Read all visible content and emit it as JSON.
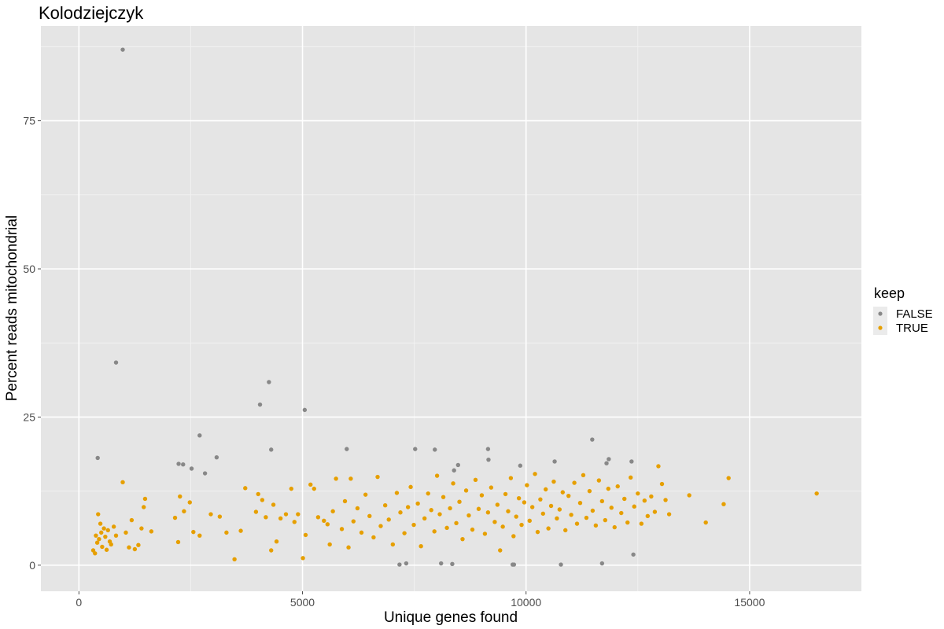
{
  "chart_data": {
    "type": "scatter",
    "title": "Kolodziejczyk",
    "xlabel": "Unique genes found",
    "ylabel": "Percent reads mitochondrial",
    "xlim": [
      -850,
      17500
    ],
    "ylim": [
      -4.4,
      91
    ],
    "x_ticks": [
      0,
      5000,
      10000,
      15000
    ],
    "x_tick_labels": [
      "0",
      "5000",
      "10000",
      "15000"
    ],
    "y_ticks": [
      0,
      25,
      50,
      75
    ],
    "y_tick_labels": [
      "0",
      "25",
      "50",
      "75"
    ],
    "grid": true,
    "legend": {
      "title": "keep",
      "placement": "right",
      "entries": [
        {
          "label": "FALSE",
          "color": "#888888"
        },
        {
          "label": "TRUE",
          "color": "#E69F00"
        }
      ]
    },
    "series": [
      {
        "name": "FALSE",
        "color": "#888888",
        "points": [
          [
            980,
            87
          ],
          [
            830,
            34.2
          ],
          [
            420,
            18.1
          ],
          [
            2230,
            17.1
          ],
          [
            2330,
            17.0
          ],
          [
            2520,
            16.3
          ],
          [
            2700,
            21.9
          ],
          [
            2820,
            15.5
          ],
          [
            3080,
            18.2
          ],
          [
            4050,
            27.1
          ],
          [
            4250,
            30.9
          ],
          [
            4300,
            19.5
          ],
          [
            5050,
            26.2
          ],
          [
            5990,
            19.6
          ],
          [
            7520,
            19.6
          ],
          [
            7960,
            19.5
          ],
          [
            8390,
            16.0
          ],
          [
            8480,
            16.9
          ],
          [
            9150,
            19.6
          ],
          [
            9160,
            17.8
          ],
          [
            9870,
            16.8
          ],
          [
            10640,
            17.5
          ],
          [
            11480,
            21.2
          ],
          [
            11800,
            17.2
          ],
          [
            11850,
            17.9
          ],
          [
            12360,
            17.5
          ],
          [
            12400,
            1.8
          ],
          [
            11700,
            0.3
          ],
          [
            10780,
            0.1
          ],
          [
            9700,
            0.1
          ],
          [
            9730,
            0.1
          ],
          [
            8350,
            0.2
          ],
          [
            8100,
            0.3
          ],
          [
            7320,
            0.3
          ],
          [
            7170,
            0.1
          ]
        ]
      },
      {
        "name": "TRUE",
        "color": "#E69F00",
        "points": [
          [
            320,
            2.5
          ],
          [
            360,
            2.0
          ],
          [
            380,
            5.0
          ],
          [
            410,
            3.8
          ],
          [
            430,
            8.6
          ],
          [
            450,
            4.4
          ],
          [
            480,
            7.0
          ],
          [
            500,
            5.5
          ],
          [
            520,
            3.1
          ],
          [
            560,
            6.2
          ],
          [
            590,
            4.8
          ],
          [
            620,
            2.6
          ],
          [
            650,
            5.9
          ],
          [
            690,
            4.0
          ],
          [
            720,
            3.5
          ],
          [
            780,
            6.5
          ],
          [
            830,
            5.0
          ],
          [
            980,
            14.0
          ],
          [
            1050,
            5.5
          ],
          [
            1120,
            3.0
          ],
          [
            1180,
            7.6
          ],
          [
            1250,
            2.7
          ],
          [
            1330,
            3.4
          ],
          [
            1400,
            6.2
          ],
          [
            1450,
            9.8
          ],
          [
            1480,
            11.2
          ],
          [
            1620,
            5.7
          ],
          [
            2150,
            8.0
          ],
          [
            2220,
            3.9
          ],
          [
            2260,
            11.6
          ],
          [
            2350,
            9.1
          ],
          [
            2480,
            10.6
          ],
          [
            2560,
            5.6
          ],
          [
            2700,
            5.0
          ],
          [
            2950,
            8.6
          ],
          [
            3150,
            8.2
          ],
          [
            3300,
            5.5
          ],
          [
            3480,
            1.0
          ],
          [
            3620,
            5.8
          ],
          [
            3720,
            13.0
          ],
          [
            3960,
            9.0
          ],
          [
            4010,
            12.0
          ],
          [
            4100,
            11.0
          ],
          [
            4180,
            8.1
          ],
          [
            4300,
            2.5
          ],
          [
            4350,
            10.2
          ],
          [
            4420,
            4.0
          ],
          [
            4510,
            7.9
          ],
          [
            4630,
            8.6
          ],
          [
            4750,
            12.9
          ],
          [
            4820,
            7.3
          ],
          [
            4900,
            8.6
          ],
          [
            5010,
            1.2
          ],
          [
            5070,
            5.1
          ],
          [
            5180,
            13.6
          ],
          [
            5260,
            12.9
          ],
          [
            5350,
            8.1
          ],
          [
            5480,
            7.5
          ],
          [
            5560,
            6.9
          ],
          [
            5610,
            3.5
          ],
          [
            5680,
            9.1
          ],
          [
            5750,
            14.6
          ],
          [
            5880,
            6.1
          ],
          [
            5950,
            10.8
          ],
          [
            6030,
            3.0
          ],
          [
            6080,
            14.6
          ],
          [
            6140,
            7.4
          ],
          [
            6230,
            9.6
          ],
          [
            6320,
            5.5
          ],
          [
            6410,
            11.9
          ],
          [
            6500,
            8.3
          ],
          [
            6590,
            4.7
          ],
          [
            6680,
            14.9
          ],
          [
            6750,
            6.6
          ],
          [
            6850,
            10.1
          ],
          [
            6930,
            7.7
          ],
          [
            7020,
            3.5
          ],
          [
            7110,
            12.2
          ],
          [
            7190,
            8.9
          ],
          [
            7280,
            5.4
          ],
          [
            7360,
            9.8
          ],
          [
            7420,
            13.2
          ],
          [
            7490,
            6.8
          ],
          [
            7580,
            10.4
          ],
          [
            7650,
            3.2
          ],
          [
            7730,
            7.9
          ],
          [
            7810,
            12.1
          ],
          [
            7880,
            9.3
          ],
          [
            7950,
            5.7
          ],
          [
            8010,
            15.1
          ],
          [
            8070,
            8.6
          ],
          [
            8150,
            11.5
          ],
          [
            8230,
            6.3
          ],
          [
            8300,
            9.6
          ],
          [
            8370,
            13.8
          ],
          [
            8440,
            7.1
          ],
          [
            8510,
            10.7
          ],
          [
            8580,
            4.4
          ],
          [
            8660,
            12.6
          ],
          [
            8720,
            8.4
          ],
          [
            8800,
            6.0
          ],
          [
            8870,
            14.4
          ],
          [
            8940,
            9.5
          ],
          [
            9010,
            11.8
          ],
          [
            9080,
            5.3
          ],
          [
            9150,
            8.9
          ],
          [
            9220,
            13.1
          ],
          [
            9300,
            7.3
          ],
          [
            9360,
            10.2
          ],
          [
            9420,
            2.5
          ],
          [
            9480,
            6.5
          ],
          [
            9540,
            12.0
          ],
          [
            9600,
            9.1
          ],
          [
            9660,
            14.7
          ],
          [
            9720,
            4.9
          ],
          [
            9780,
            8.2
          ],
          [
            9840,
            11.3
          ],
          [
            9900,
            6.8
          ],
          [
            9960,
            10.6
          ],
          [
            10020,
            13.5
          ],
          [
            10080,
            7.5
          ],
          [
            10140,
            9.8
          ],
          [
            10200,
            15.4
          ],
          [
            10260,
            5.6
          ],
          [
            10320,
            11.1
          ],
          [
            10380,
            8.7
          ],
          [
            10440,
            12.8
          ],
          [
            10500,
            6.2
          ],
          [
            10560,
            10.0
          ],
          [
            10620,
            14.1
          ],
          [
            10690,
            7.9
          ],
          [
            10750,
            9.4
          ],
          [
            10820,
            12.3
          ],
          [
            10880,
            5.9
          ],
          [
            10950,
            11.7
          ],
          [
            11010,
            8.5
          ],
          [
            11080,
            13.9
          ],
          [
            11140,
            7.0
          ],
          [
            11210,
            10.5
          ],
          [
            11280,
            15.2
          ],
          [
            11350,
            8.0
          ],
          [
            11420,
            12.5
          ],
          [
            11490,
            9.2
          ],
          [
            11560,
            6.7
          ],
          [
            11630,
            14.3
          ],
          [
            11700,
            10.8
          ],
          [
            11770,
            7.6
          ],
          [
            11840,
            12.9
          ],
          [
            11910,
            9.7
          ],
          [
            11980,
            6.4
          ],
          [
            12050,
            13.3
          ],
          [
            12130,
            8.8
          ],
          [
            12200,
            11.2
          ],
          [
            12270,
            7.2
          ],
          [
            12340,
            14.8
          ],
          [
            12420,
            9.9
          ],
          [
            12500,
            12.1
          ],
          [
            12580,
            7.0
          ],
          [
            12650,
            10.9
          ],
          [
            12720,
            8.3
          ],
          [
            12800,
            11.6
          ],
          [
            12880,
            9.0
          ],
          [
            12960,
            16.7
          ],
          [
            13040,
            13.7
          ],
          [
            13120,
            11.0
          ],
          [
            13200,
            8.6
          ],
          [
            13650,
            11.8
          ],
          [
            14020,
            7.2
          ],
          [
            14420,
            10.3
          ],
          [
            14530,
            14.7
          ],
          [
            16500,
            12.1
          ]
        ]
      }
    ]
  }
}
